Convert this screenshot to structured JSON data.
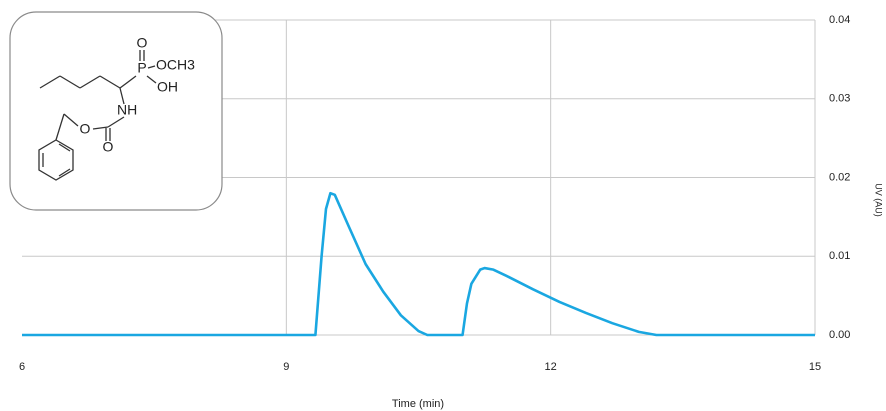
{
  "chart_data": {
    "type": "line",
    "xlabel": "Time (min)",
    "ylabel": "UV (AU)",
    "color": "#1aa7e1",
    "x": [
      6,
      9.33,
      9.4,
      9.45,
      9.5,
      9.55,
      9.7,
      9.9,
      10.1,
      10.3,
      10.5,
      10.6,
      11.0,
      11.05,
      11.1,
      11.2,
      11.25,
      11.35,
      11.5,
      11.8,
      12.1,
      12.4,
      12.7,
      13.0,
      13.2,
      15
    ],
    "values": [
      0,
      0,
      0.01,
      0.016,
      0.018,
      0.0178,
      0.014,
      0.009,
      0.0055,
      0.0025,
      0.0005,
      0,
      0,
      0.004,
      0.0065,
      0.0083,
      0.0085,
      0.0083,
      0.0075,
      0.0058,
      0.0042,
      0.0028,
      0.0015,
      0.0004,
      0,
      0
    ],
    "xlim": [
      6,
      15
    ],
    "xticks": [
      6,
      9,
      12,
      15
    ],
    "ylim": [
      0,
      0.04
    ],
    "yticks": [
      {
        "value": 0,
        "label": "0.00"
      },
      {
        "value": 0.01,
        "label": "0.01"
      },
      {
        "value": 0.02,
        "label": "0.02"
      },
      {
        "value": 0.03,
        "label": "0.03"
      },
      {
        "value": 0.04,
        "label": "0.04"
      }
    ],
    "grid": true,
    "structure_labels": [
      "O",
      "P",
      "OCH3",
      "OH",
      "NH",
      "O",
      "O"
    ]
  }
}
